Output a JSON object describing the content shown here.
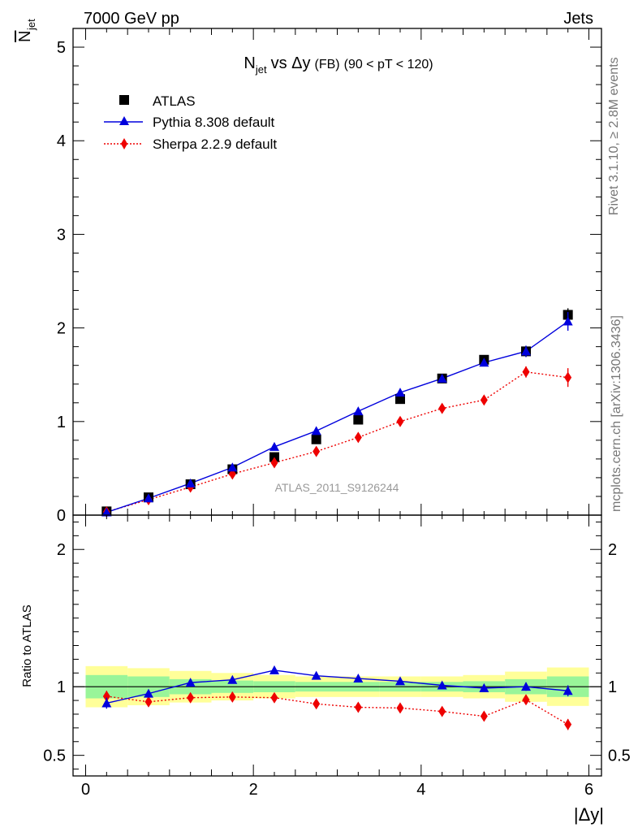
{
  "header": {
    "left": "7000 GeV pp",
    "right": "Jets"
  },
  "side_text": {
    "rivet": "Rivet 3.1.10, ≥ 2.8M events",
    "mcplots": "mcplots.cern.ch [arXiv:1306.3436]"
  },
  "colors": {
    "atlas": "#000000",
    "pythia": "#0000dd",
    "sherpa": "#ee0000",
    "band_inner": "#99f599",
    "band_outer": "#ffff99"
  },
  "chart_data": [
    {
      "type": "scatter",
      "panel": "main",
      "title": "N_jet vs Δy (FB) (90 < pT < 120)",
      "title_parts": {
        "n": "N",
        "sub": "jet",
        "vs": "vs Δy",
        "fb": "(FB)",
        "range": "(90 < pT < 120)"
      },
      "ylabel_parts": {
        "n": "N",
        "sub": "jet"
      },
      "watermark": "ATLAS_2011_S9126244",
      "xlim": [
        -0.15,
        6.15
      ],
      "ylim": [
        0,
        5.2
      ],
      "yticks": [
        0,
        1,
        2,
        3,
        4,
        5
      ],
      "ytick_labels": [
        "0",
        "1",
        "2",
        "3",
        "4",
        "5"
      ],
      "legend_position": "top-left",
      "x": [
        0.25,
        0.75,
        1.25,
        1.75,
        2.25,
        2.75,
        3.25,
        3.75,
        4.25,
        4.75,
        5.25,
        5.75
      ],
      "series": [
        {
          "name": "ATLAS",
          "marker": "square",
          "values": [
            0.04,
            0.19,
            0.33,
            0.49,
            0.62,
            0.81,
            1.02,
            1.24,
            1.46,
            1.66,
            1.75,
            2.14
          ],
          "errors": [
            0.005,
            0.01,
            0.01,
            0.02,
            0.02,
            0.03,
            0.03,
            0.04,
            0.04,
            0.05,
            0.06,
            0.07
          ]
        },
        {
          "name": "Pythia 8.308 default",
          "marker": "triangle",
          "line": "solid",
          "values": [
            0.03,
            0.18,
            0.34,
            0.51,
            0.73,
            0.9,
            1.11,
            1.31,
            1.46,
            1.63,
            1.75,
            2.07
          ],
          "errors": [
            0.005,
            0.01,
            0.01,
            0.015,
            0.02,
            0.02,
            0.02,
            0.03,
            0.03,
            0.04,
            0.06,
            0.1
          ]
        },
        {
          "name": "Sherpa 2.2.9 default",
          "marker": "diamond",
          "line": "dotted",
          "values": [
            0.035,
            0.165,
            0.3,
            0.44,
            0.56,
            0.68,
            0.83,
            1.0,
            1.14,
            1.23,
            1.53,
            1.47
          ],
          "errors": [
            0.005,
            0.01,
            0.01,
            0.015,
            0.02,
            0.02,
            0.02,
            0.03,
            0.03,
            0.04,
            0.06,
            0.1
          ]
        }
      ]
    },
    {
      "type": "line",
      "panel": "ratio",
      "ylabel": "Ratio to ATLAS",
      "xlabel": "|Δy|",
      "xlim": [
        -0.15,
        6.15
      ],
      "ylim": [
        0.35,
        2.25
      ],
      "yticks": [
        0.5,
        1,
        2
      ],
      "ytick_labels": [
        "0.5",
        "1",
        "2"
      ],
      "xticks": [
        0,
        2,
        4,
        6
      ],
      "xtick_labels": [
        "0",
        "2",
        "4",
        "6"
      ],
      "reference": 1,
      "x": [
        0.25,
        0.75,
        1.25,
        1.75,
        2.25,
        2.75,
        3.25,
        3.75,
        4.25,
        4.75,
        5.25,
        5.75
      ],
      "bin_edges": [
        0,
        0.5,
        1,
        1.5,
        2,
        2.5,
        3,
        3.5,
        4,
        4.5,
        5,
        5.5,
        6
      ],
      "band_inner": [
        0.085,
        0.075,
        0.055,
        0.045,
        0.04,
        0.035,
        0.035,
        0.035,
        0.035,
        0.04,
        0.055,
        0.075
      ],
      "band_outer": [
        0.15,
        0.135,
        0.115,
        0.1,
        0.085,
        0.075,
        0.075,
        0.075,
        0.075,
        0.085,
        0.11,
        0.14
      ],
      "series": [
        {
          "name": "Pythia 8.308 default",
          "values": [
            0.88,
            0.95,
            1.03,
            1.05,
            1.12,
            1.08,
            1.06,
            1.04,
            1.01,
            0.99,
            1.0,
            0.97
          ],
          "errors": [
            0.04,
            0.02,
            0.015,
            0.015,
            0.01,
            0.01,
            0.01,
            0.01,
            0.01,
            0.02,
            0.03,
            0.04
          ]
        },
        {
          "name": "Sherpa 2.2.9 default",
          "values": [
            0.93,
            0.89,
            0.92,
            0.925,
            0.92,
            0.875,
            0.85,
            0.845,
            0.82,
            0.785,
            0.905,
            0.725
          ],
          "errors": [
            0.04,
            0.02,
            0.015,
            0.015,
            0.01,
            0.01,
            0.01,
            0.01,
            0.015,
            0.02,
            0.03,
            0.04
          ]
        }
      ]
    }
  ]
}
